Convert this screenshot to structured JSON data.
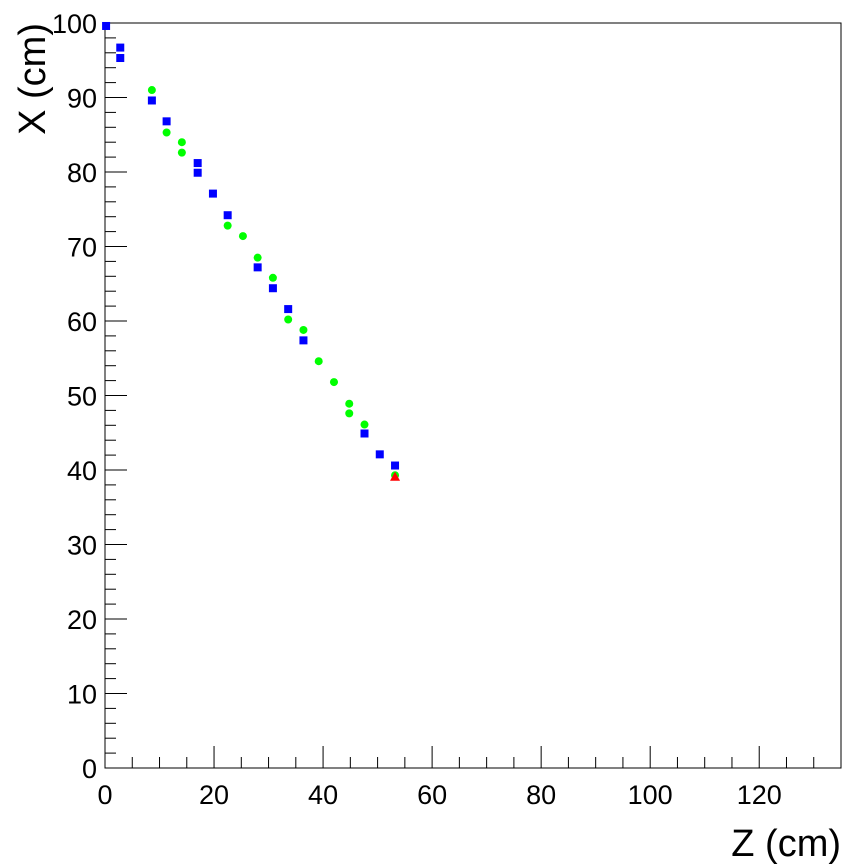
{
  "chart_data": {
    "type": "scatter",
    "title": "",
    "xlabel": "Z (cm)",
    "ylabel": "X (cm)",
    "xlim": [
      0,
      135
    ],
    "ylim": [
      0,
      100
    ],
    "x_ticks": [
      0,
      20,
      40,
      60,
      80,
      100,
      120
    ],
    "y_ticks": [
      0,
      10,
      20,
      30,
      40,
      50,
      60,
      70,
      80,
      90,
      100
    ],
    "grid": false,
    "legend": "none",
    "series": [
      {
        "marker": "square",
        "color": "#0000ff",
        "points": [
          [
            0.2,
            99.6
          ],
          [
            2.8,
            96.7
          ],
          [
            2.8,
            95.3
          ],
          [
            8.6,
            89.6
          ],
          [
            11.3,
            86.8
          ],
          [
            17.0,
            81.2
          ],
          [
            17.0,
            79.9
          ],
          [
            19.8,
            77.1
          ],
          [
            22.5,
            74.2
          ],
          [
            28.0,
            67.2
          ],
          [
            30.8,
            64.4
          ],
          [
            33.6,
            61.6
          ],
          [
            36.4,
            57.4
          ],
          [
            47.6,
            44.9
          ],
          [
            50.4,
            42.1
          ],
          [
            53.2,
            40.6
          ]
        ]
      },
      {
        "marker": "circle",
        "color": "#00ff00",
        "points": [
          [
            8.6,
            91.0
          ],
          [
            11.3,
            85.3
          ],
          [
            14.1,
            84.0
          ],
          [
            14.1,
            82.6
          ],
          [
            22.5,
            72.8
          ],
          [
            25.3,
            71.4
          ],
          [
            28.0,
            68.5
          ],
          [
            30.8,
            65.8
          ],
          [
            33.6,
            60.2
          ],
          [
            36.4,
            58.8
          ],
          [
            39.2,
            54.6
          ],
          [
            42.0,
            51.8
          ],
          [
            44.8,
            48.9
          ],
          [
            44.8,
            47.6
          ],
          [
            47.6,
            46.1
          ],
          [
            53.2,
            39.3
          ]
        ]
      },
      {
        "marker": "triangle",
        "color": "#ff0000",
        "points": [
          [
            53.2,
            39.1
          ]
        ]
      }
    ]
  }
}
